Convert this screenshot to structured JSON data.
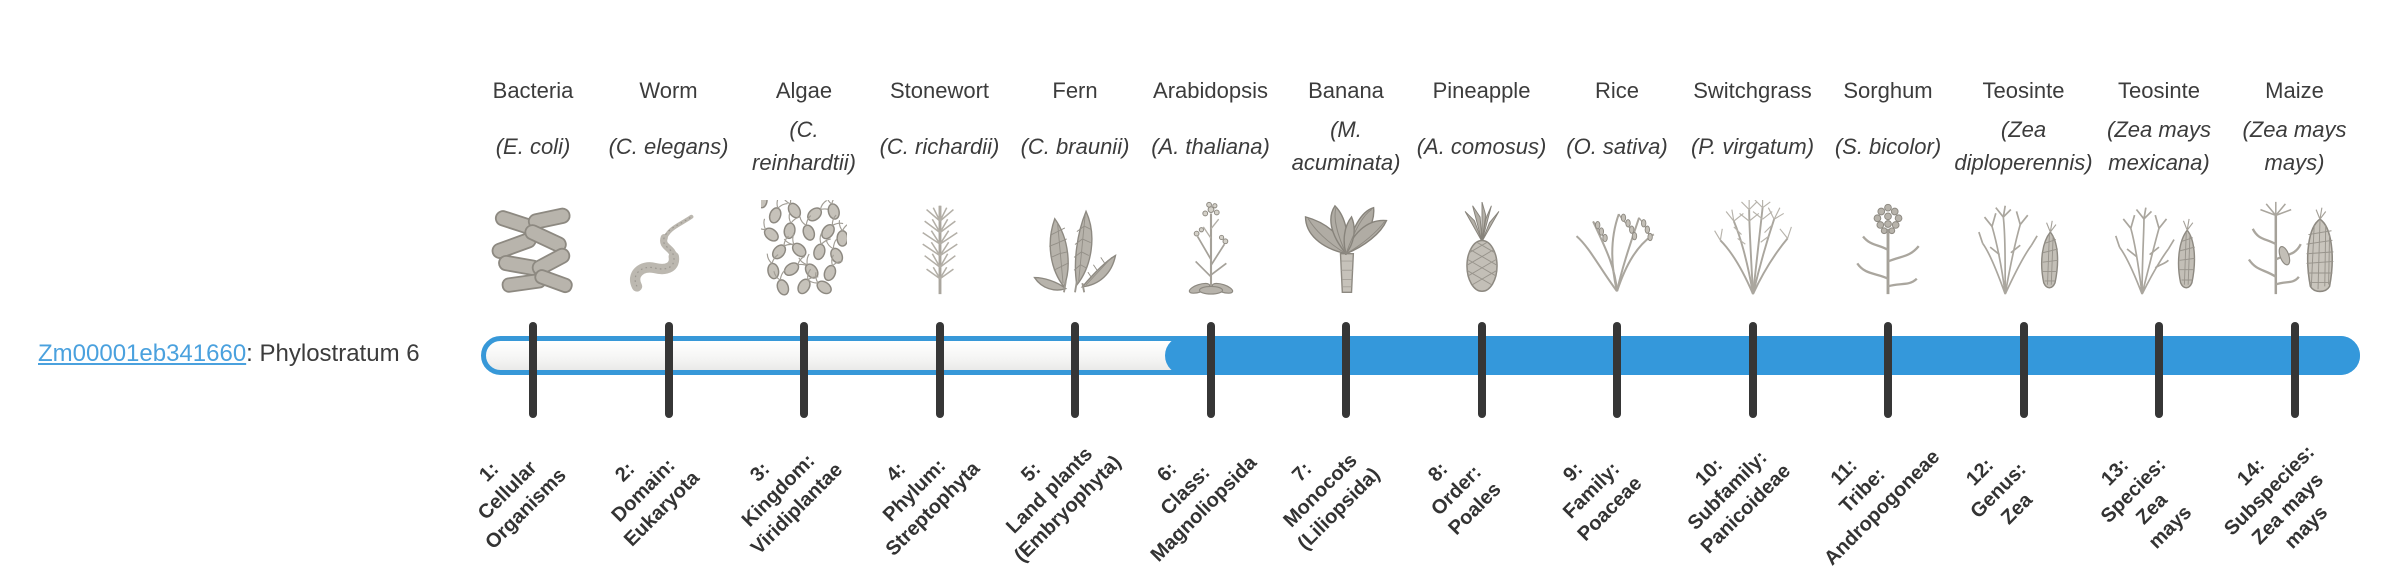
{
  "gene": {
    "id": "Zm00001eb341660",
    "description": ": Phylostratum 6",
    "phylostratum": 6
  },
  "bar": {
    "accent_color": "#3498db",
    "tick_color": "#363636",
    "link_color": "#4aa1de",
    "filled_from_stratum": 6,
    "total_strata": 14
  },
  "columns": [
    {
      "common_name": "Bacteria",
      "scientific_name": "(E. coli)",
      "icon": "bacteria-icon",
      "stratum_text": "1:\nCellular\nOrganisms",
      "in_phylostratum": false
    },
    {
      "common_name": "Worm",
      "scientific_name": "(C. elegans)",
      "icon": "worm-icon",
      "stratum_text": "2:\nDomain:\nEukaryota",
      "in_phylostratum": false
    },
    {
      "common_name": "Algae",
      "scientific_name": "(C. reinhardtii)",
      "icon": "algae-icon",
      "stratum_text": "3:\nKingdom:\nViridiplantae",
      "in_phylostratum": false
    },
    {
      "common_name": "Stonewort",
      "scientific_name": "(C. richardii)",
      "icon": "stonewort-icon",
      "stratum_text": "4:\nPhylum:\nStreptophyta",
      "in_phylostratum": false
    },
    {
      "common_name": "Fern",
      "scientific_name": "(C. braunii)",
      "icon": "fern-icon",
      "stratum_text": "5:\nLand plants\n(Embryophyta)",
      "in_phylostratum": false
    },
    {
      "common_name": "Arabidopsis",
      "scientific_name": "(A. thaliana)",
      "icon": "arabidopsis-icon",
      "stratum_text": "6:\nClass:\nMagnoliopsida",
      "in_phylostratum": true
    },
    {
      "common_name": "Banana",
      "scientific_name": "(M. acuminata)",
      "icon": "banana-icon",
      "stratum_text": "7:\nMonocots\n(Liliopsida)",
      "in_phylostratum": true
    },
    {
      "common_name": "Pineapple",
      "scientific_name": "(A. comosus)",
      "icon": "pineapple-icon",
      "stratum_text": "8:\nOrder:\nPoales",
      "in_phylostratum": true
    },
    {
      "common_name": "Rice",
      "scientific_name": "(O. sativa)",
      "icon": "rice-icon",
      "stratum_text": "9:\nFamily:\nPoaceae",
      "in_phylostratum": true
    },
    {
      "common_name": "Switchgrass",
      "scientific_name": "(P. virgatum)",
      "icon": "switchgrass-icon",
      "stratum_text": "10:\nSubfamily:\nPanicoideae",
      "in_phylostratum": true
    },
    {
      "common_name": "Sorghum",
      "scientific_name": "(S. bicolor)",
      "icon": "sorghum-icon",
      "stratum_text": "11:\nTribe:\nAndropogoneae",
      "in_phylostratum": true
    },
    {
      "common_name": "Teosinte",
      "scientific_name": "(Zea diploperennis)",
      "icon": "teosinte-diploperennis-icon",
      "stratum_text": "12:\nGenus:\nZea",
      "in_phylostratum": true
    },
    {
      "common_name": "Teosinte",
      "scientific_name": "(Zea mays mexicana)",
      "icon": "teosinte-mexicana-icon",
      "stratum_text": "13:\nSpecies:\nZea\nmays",
      "in_phylostratum": true
    },
    {
      "common_name": "Maize",
      "scientific_name": "(Zea mays mays)",
      "icon": "maize-icon",
      "stratum_text": "14:\nSubspecies:\nZea mays\nmays",
      "in_phylostratum": true
    }
  ]
}
